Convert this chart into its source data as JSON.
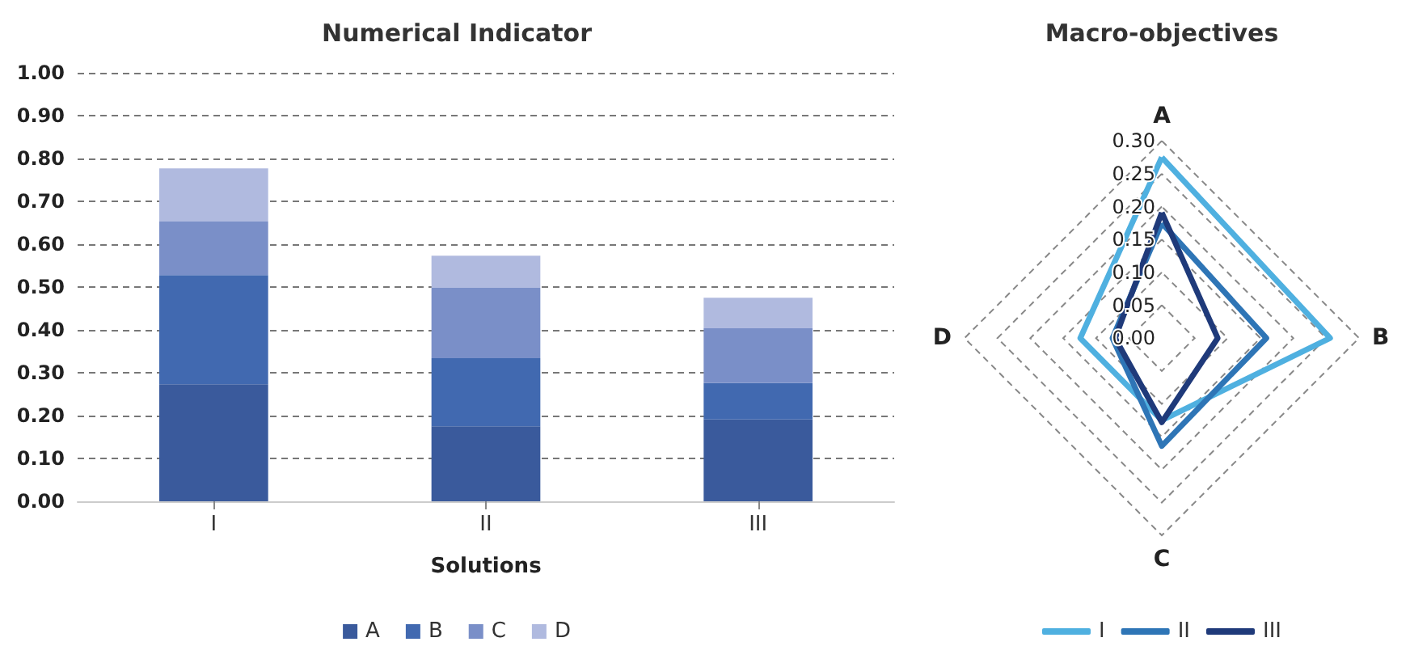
{
  "chart_data": [
    {
      "type": "bar",
      "title": "Numerical Indicator",
      "xlabel": "Solutions",
      "categories": [
        "I",
        "II",
        "III"
      ],
      "stacked": true,
      "series": [
        {
          "name": "A",
          "color": "#3a5a9c",
          "values": [
            0.273,
            0.175,
            0.191
          ]
        },
        {
          "name": "B",
          "color": "#4169b0",
          "values": [
            0.255,
            0.159,
            0.085
          ]
        },
        {
          "name": "C",
          "color": "#7a8fc8",
          "values": [
            0.125,
            0.164,
            0.128
          ]
        },
        {
          "name": "D",
          "color": "#b0badf",
          "values": [
            0.124,
            0.075,
            0.071
          ]
        }
      ],
      "ylim": [
        0,
        1
      ],
      "yticks": [
        {
          "value": 0,
          "label": "0.00"
        },
        {
          "value": 0.1,
          "label": "0.10"
        },
        {
          "value": 0.2,
          "label": "0.20"
        },
        {
          "value": 0.3,
          "label": "0.30"
        },
        {
          "value": 0.4,
          "label": "0.40"
        },
        {
          "value": 0.5,
          "label": "0.50"
        },
        {
          "value": 0.6,
          "label": "0.60"
        },
        {
          "value": 0.7,
          "label": "0.70"
        },
        {
          "value": 0.8,
          "label": "0.80"
        },
        {
          "value": 0.9,
          "label": "0.90"
        },
        {
          "value": 1,
          "label": "1.00"
        }
      ],
      "grid": "y",
      "legend": "bottom"
    },
    {
      "type": "radar",
      "title": "Macro-objectives",
      "categories": [
        "A",
        "B",
        "C",
        "D"
      ],
      "series": [
        {
          "name": "I",
          "color": "#4fb0e0",
          "values": [
            0.275,
            0.256,
            0.125,
            0.124
          ]
        },
        {
          "name": "II",
          "color": "#2e75b6",
          "values": [
            0.175,
            0.159,
            0.164,
            0.075
          ]
        },
        {
          "name": "III",
          "color": "#1f3a7a",
          "values": [
            0.191,
            0.085,
            0.128,
            0.071
          ]
        }
      ],
      "ylim": [
        0,
        0.3
      ],
      "yticks": [
        {
          "value": 0,
          "label": "0.00"
        },
        {
          "value": 0.05,
          "label": "0.05"
        },
        {
          "value": 0.1,
          "label": "0.10"
        },
        {
          "value": 0.15,
          "label": "0.15"
        },
        {
          "value": 0.2,
          "label": "0.20"
        },
        {
          "value": 0.25,
          "label": "0.25"
        },
        {
          "value": 0.3,
          "label": "0.30"
        }
      ],
      "grid": true,
      "legend": "bottom",
      "marker": "none",
      "line_style": "solid"
    }
  ]
}
